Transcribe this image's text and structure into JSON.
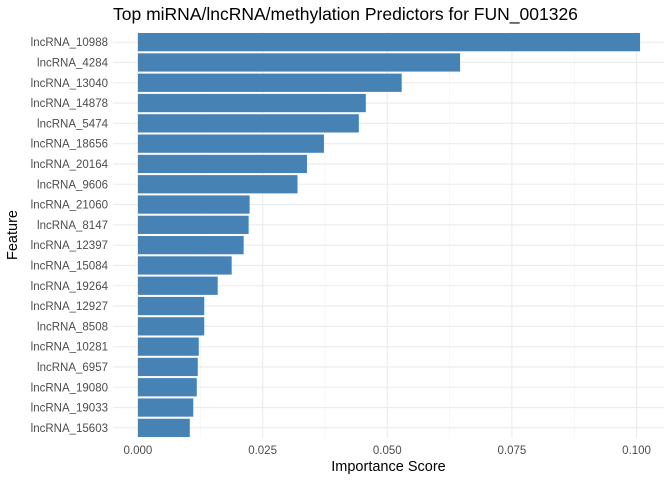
{
  "chart_data": {
    "type": "bar",
    "orientation": "horizontal",
    "title": "Top miRNA/lncRNA/methylation Predictors for FUN_001326",
    "xlabel": "Importance Score",
    "ylabel": "Feature",
    "xlim": [
      0,
      0.1
    ],
    "x_ticks": [
      "0.000",
      "0.025",
      "0.050",
      "0.075",
      "0.100"
    ],
    "grid": true,
    "bar_color": "#4682B4",
    "categories": [
      "lncRNA_10988",
      "lncRNA_4284",
      "lncRNA_13040",
      "lncRNA_14878",
      "lncRNA_5474",
      "lncRNA_18656",
      "lncRNA_20164",
      "lncRNA_9606",
      "lncRNA_21060",
      "lncRNA_8147",
      "lncRNA_12397",
      "lncRNA_15084",
      "lncRNA_19264",
      "lncRNA_12927",
      "lncRNA_8508",
      "lncRNA_10281",
      "lncRNA_6957",
      "lncRNA_19080",
      "lncRNA_19033",
      "lncRNA_15603"
    ],
    "values": [
      0.1007,
      0.0646,
      0.0529,
      0.0457,
      0.0443,
      0.0373,
      0.0339,
      0.032,
      0.0224,
      0.0222,
      0.0212,
      0.0188,
      0.016,
      0.0133,
      0.0133,
      0.0122,
      0.012,
      0.0118,
      0.0111,
      0.0104
    ]
  }
}
